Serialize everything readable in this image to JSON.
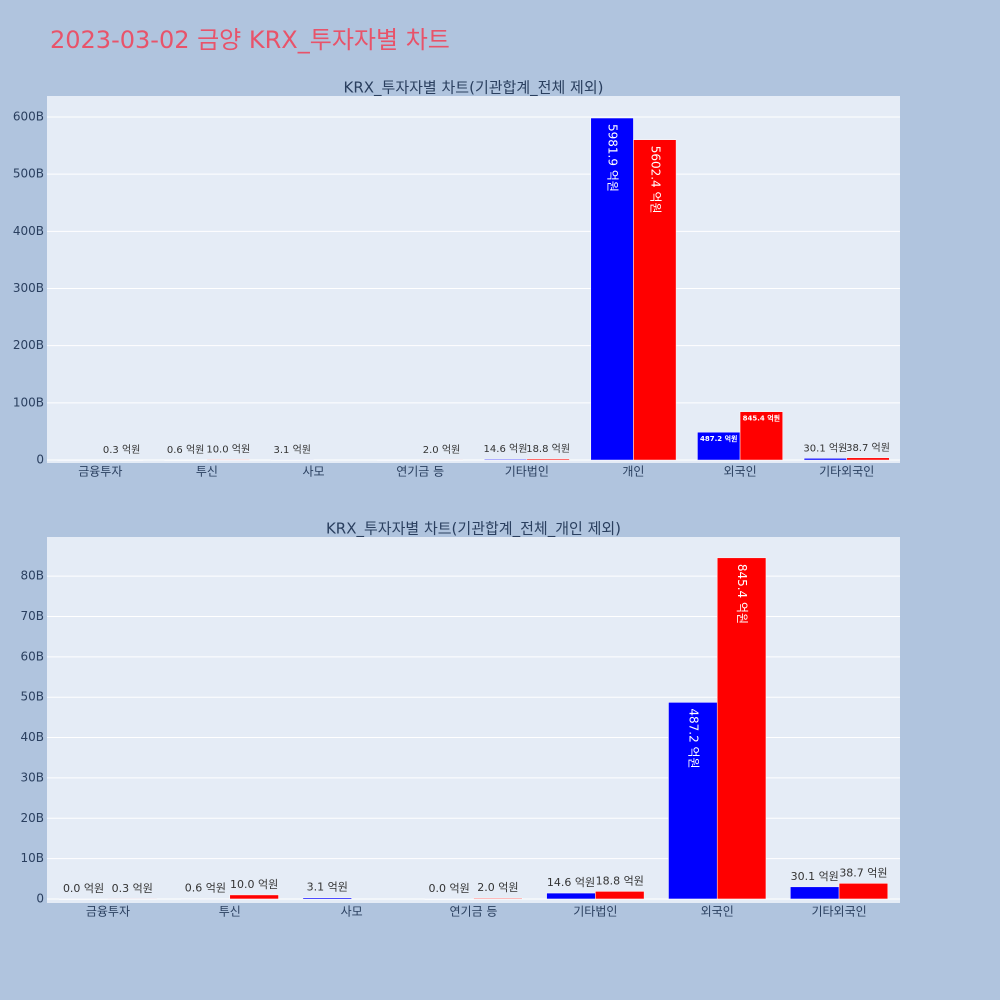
{
  "title": "2023-03-02 금양 KRX_투자자별 차트",
  "chart_data": [
    {
      "type": "bar",
      "title": "KRX_투자자별 차트(기관합계_전체 제외)",
      "categories": [
        "금융투자",
        "투신",
        "사모",
        "연기금 등",
        "기타법인",
        "개인",
        "외국인",
        "기타외국인"
      ],
      "series": [
        {
          "color": "#0000ff",
          "values": [
            0,
            0.06,
            0.31,
            0,
            1.46,
            598.19,
            48.72,
            3.01
          ],
          "value_labels": [
            null,
            "0.6 억원",
            "3.1 억원",
            null,
            "14.6 억원",
            "5981.9 억원",
            "487.2 억원",
            "30.1 억원"
          ]
        },
        {
          "color": "#ff0000",
          "values": [
            0.03,
            1.0,
            null,
            0.2,
            1.88,
            560.24,
            84.54,
            3.87
          ],
          "value_labels": [
            "0.3 억원",
            "10.0 억원",
            null,
            "2.0 억원",
            "18.8 억원",
            "5602.4 억원",
            "845.4 억원",
            "38.7 억원"
          ]
        }
      ],
      "ylim": [
        -5.2,
        636.7
      ],
      "yticks": [
        0,
        {
          "value": 100,
          "label": "100B"
        },
        {
          "value": 200,
          "label": "200B"
        },
        {
          "value": 300,
          "label": "300B"
        },
        {
          "value": 400,
          "label": "400B"
        },
        {
          "value": 500,
          "label": "500B"
        },
        {
          "value": 600,
          "label": "600B"
        }
      ],
      "grid": true
    },
    {
      "type": "bar",
      "title": "KRX_투자자별 차트(기관합계_전체_개인 제외)",
      "categories": [
        "금융투자",
        "투신",
        "사모",
        "연기금 등",
        "기타법인",
        "외국인",
        "기타외국인"
      ],
      "series": [
        {
          "color": "#0000ff",
          "values": [
            0,
            0.06,
            0.31,
            0,
            1.46,
            48.72,
            3.01
          ],
          "value_labels": [
            "0.0 억원",
            "0.6 억원",
            "3.1 억원",
            "0.0 억원",
            "14.6 억원",
            "487.2 억원",
            "30.1 억원"
          ]
        },
        {
          "color": "#ff0000",
          "values": [
            0.03,
            1.0,
            null,
            0.2,
            1.88,
            84.54,
            3.87
          ],
          "value_labels": [
            "0.3 억원",
            "10.0 억원",
            null,
            "2.0 억원",
            "18.8 억원",
            "845.4 억원",
            "38.7 억원"
          ]
        }
      ],
      "ylim": [
        -1,
        89.7
      ],
      "yticks": [
        0,
        {
          "value": 10,
          "label": "10B"
        },
        {
          "value": 20,
          "label": "20B"
        },
        {
          "value": 30,
          "label": "30B"
        },
        {
          "value": 40,
          "label": "40B"
        },
        {
          "value": 50,
          "label": "50B"
        },
        {
          "value": 60,
          "label": "60B"
        },
        {
          "value": 70,
          "label": "70B"
        },
        {
          "value": 80,
          "label": "80B"
        }
      ],
      "grid": true
    }
  ]
}
